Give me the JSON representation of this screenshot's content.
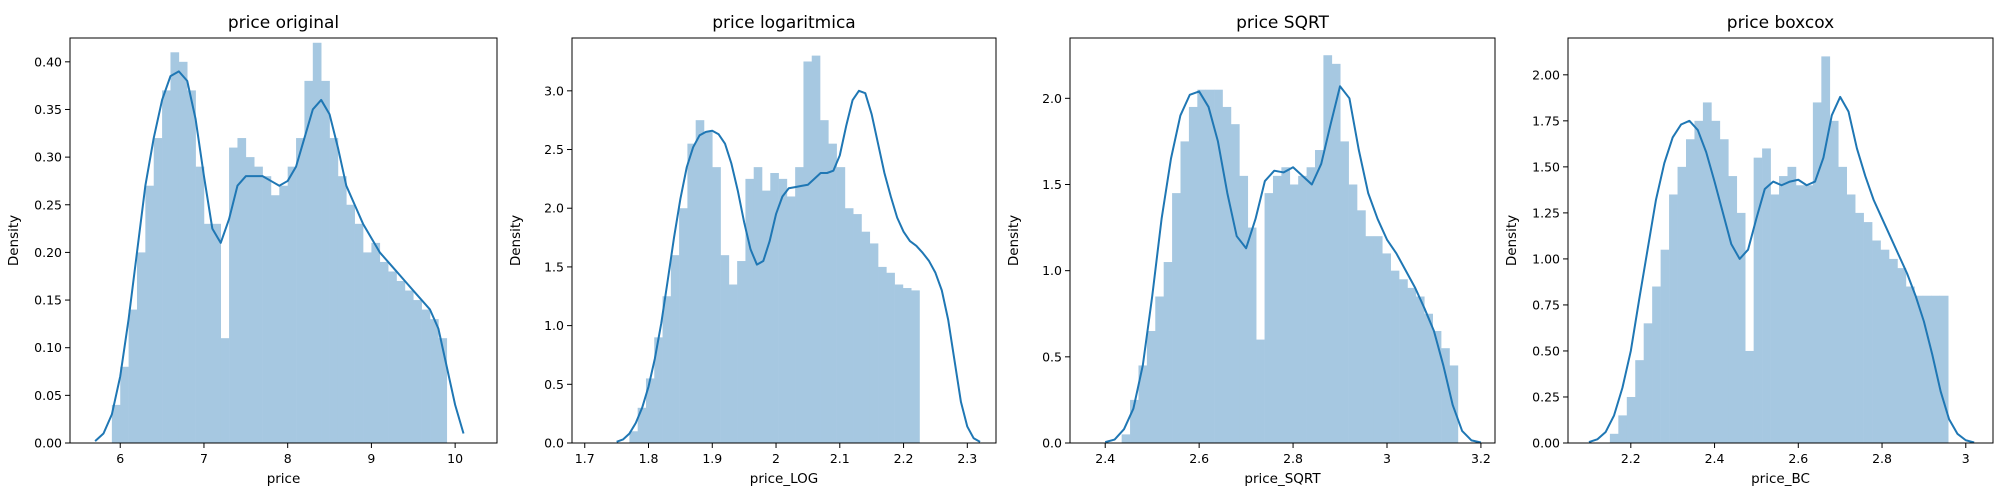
{
  "figure": {
    "background": "#ffffff",
    "bar_color": "#a6c8e1",
    "kde_color": "#1f77b4"
  },
  "chart_data": [
    {
      "type": "histogram",
      "title": "price original",
      "xlabel": "price",
      "ylabel": "Density",
      "xlim": [
        5.4,
        10.5
      ],
      "ylim": [
        0,
        0.425
      ],
      "xticks": [
        6,
        7,
        8,
        9,
        10
      ],
      "yticks": [
        0.0,
        0.05,
        0.1,
        0.15,
        0.2,
        0.25,
        0.3,
        0.35,
        0.4
      ],
      "ytick_decimals": 2,
      "bins": {
        "start": 5.9,
        "width": 0.1,
        "values": [
          0.04,
          0.08,
          0.14,
          0.2,
          0.27,
          0.32,
          0.37,
          0.41,
          0.4,
          0.37,
          0.29,
          0.23,
          0.23,
          0.11,
          0.31,
          0.32,
          0.3,
          0.29,
          0.28,
          0.26,
          0.27,
          0.29,
          0.32,
          0.38,
          0.42,
          0.38,
          0.32,
          0.28,
          0.25,
          0.23,
          0.2,
          0.21,
          0.19,
          0.18,
          0.17,
          0.16,
          0.15,
          0.14,
          0.13,
          0.11
        ]
      },
      "kde": {
        "x": [
          5.7,
          5.8,
          5.9,
          6.0,
          6.1,
          6.2,
          6.3,
          6.4,
          6.5,
          6.6,
          6.7,
          6.8,
          6.9,
          7.0,
          7.1,
          7.2,
          7.3,
          7.4,
          7.5,
          7.6,
          7.7,
          7.8,
          7.9,
          8.0,
          8.1,
          8.2,
          8.3,
          8.4,
          8.5,
          8.6,
          8.7,
          8.8,
          8.9,
          9.0,
          9.1,
          9.2,
          9.3,
          9.4,
          9.5,
          9.6,
          9.7,
          9.8,
          9.9,
          10.0,
          10.1
        ],
        "y": [
          0.002,
          0.01,
          0.03,
          0.07,
          0.13,
          0.2,
          0.27,
          0.32,
          0.36,
          0.385,
          0.39,
          0.38,
          0.34,
          0.28,
          0.225,
          0.21,
          0.235,
          0.27,
          0.28,
          0.28,
          0.28,
          0.275,
          0.27,
          0.275,
          0.29,
          0.32,
          0.35,
          0.36,
          0.345,
          0.31,
          0.27,
          0.25,
          0.23,
          0.215,
          0.2,
          0.19,
          0.18,
          0.17,
          0.16,
          0.15,
          0.14,
          0.12,
          0.08,
          0.04,
          0.01
        ]
      }
    },
    {
      "type": "histogram",
      "title": "price logaritmica",
      "xlabel": "price_LOG",
      "ylabel": "Density",
      "xlim": [
        1.68,
        2.345
      ],
      "ylim": [
        0,
        3.45
      ],
      "xticks": [
        1.7,
        1.8,
        1.9,
        2.0,
        2.1,
        2.2,
        2.3
      ],
      "yticks": [
        0.0,
        0.5,
        1.0,
        1.5,
        2.0,
        2.5,
        3.0
      ],
      "ytick_decimals": 1,
      "bins": {
        "start": 1.77,
        "width": 0.013,
        "values": [
          0.1,
          0.3,
          0.55,
          0.9,
          1.25,
          1.6,
          2.0,
          2.55,
          2.75,
          2.65,
          2.35,
          1.6,
          1.35,
          1.55,
          2.25,
          2.35,
          2.15,
          2.3,
          2.25,
          2.1,
          2.35,
          3.25,
          3.3,
          2.75,
          2.55,
          2.35,
          2.0,
          1.95,
          1.8,
          1.7,
          1.5,
          1.45,
          1.35,
          1.32,
          1.3
        ]
      },
      "kde": {
        "x": [
          1.75,
          1.76,
          1.77,
          1.78,
          1.79,
          1.8,
          1.81,
          1.82,
          1.83,
          1.84,
          1.85,
          1.86,
          1.87,
          1.88,
          1.89,
          1.9,
          1.91,
          1.92,
          1.93,
          1.94,
          1.95,
          1.96,
          1.97,
          1.98,
          1.99,
          2.0,
          2.01,
          2.02,
          2.03,
          2.04,
          2.05,
          2.06,
          2.07,
          2.08,
          2.09,
          2.1,
          2.11,
          2.12,
          2.13,
          2.14,
          2.15,
          2.16,
          2.17,
          2.18,
          2.19,
          2.2,
          2.21,
          2.22,
          2.23,
          2.24,
          2.25,
          2.26,
          2.27,
          2.28,
          2.29,
          2.3,
          2.31,
          2.32
        ],
        "y": [
          0.01,
          0.03,
          0.08,
          0.17,
          0.3,
          0.48,
          0.72,
          1.02,
          1.38,
          1.75,
          2.08,
          2.35,
          2.52,
          2.62,
          2.65,
          2.66,
          2.63,
          2.55,
          2.38,
          2.15,
          1.88,
          1.65,
          1.52,
          1.55,
          1.72,
          1.95,
          2.1,
          2.17,
          2.18,
          2.19,
          2.2,
          2.25,
          2.3,
          2.3,
          2.32,
          2.45,
          2.7,
          2.92,
          3.0,
          2.98,
          2.8,
          2.55,
          2.3,
          2.1,
          1.92,
          1.8,
          1.72,
          1.68,
          1.62,
          1.55,
          1.45,
          1.3,
          1.05,
          0.7,
          0.35,
          0.14,
          0.04,
          0.01
        ]
      }
    },
    {
      "type": "histogram",
      "title": "price SQRT",
      "xlabel": "price_SQRT",
      "ylabel": "Density",
      "xlim": [
        2.325,
        3.23
      ],
      "ylim": [
        0,
        2.35
      ],
      "xticks": [
        2.4,
        2.6,
        2.8,
        3.0,
        3.2
      ],
      "yticks": [
        0.0,
        0.5,
        1.0,
        1.5,
        2.0
      ],
      "ytick_decimals": 1,
      "bins": {
        "start": 2.435,
        "width": 0.0179,
        "values": [
          0.05,
          0.25,
          0.45,
          0.65,
          0.85,
          1.05,
          1.45,
          1.75,
          1.95,
          2.05,
          2.05,
          2.05,
          1.95,
          1.85,
          1.55,
          1.25,
          0.6,
          1.45,
          1.55,
          1.6,
          1.5,
          1.55,
          1.6,
          1.7,
          2.25,
          2.2,
          1.75,
          1.5,
          1.35,
          1.2,
          1.2,
          1.1,
          1.0,
          0.95,
          0.9,
          0.85,
          0.75,
          0.65,
          0.55,
          0.45
        ]
      },
      "kde": {
        "x": [
          2.4,
          2.42,
          2.44,
          2.46,
          2.48,
          2.5,
          2.52,
          2.54,
          2.56,
          2.58,
          2.6,
          2.62,
          2.64,
          2.66,
          2.68,
          2.7,
          2.72,
          2.74,
          2.76,
          2.78,
          2.8,
          2.82,
          2.84,
          2.86,
          2.88,
          2.9,
          2.92,
          2.94,
          2.96,
          2.98,
          3.0,
          3.02,
          3.04,
          3.06,
          3.08,
          3.1,
          3.12,
          3.14,
          3.16,
          3.18,
          3.2
        ],
        "y": [
          0.005,
          0.02,
          0.08,
          0.2,
          0.45,
          0.85,
          1.3,
          1.65,
          1.9,
          2.02,
          2.04,
          1.95,
          1.75,
          1.45,
          1.2,
          1.13,
          1.3,
          1.52,
          1.58,
          1.57,
          1.6,
          1.55,
          1.5,
          1.62,
          1.85,
          2.07,
          2.0,
          1.7,
          1.45,
          1.3,
          1.18,
          1.1,
          1.0,
          0.9,
          0.78,
          0.65,
          0.45,
          0.22,
          0.07,
          0.015,
          0.003
        ]
      }
    },
    {
      "type": "histogram",
      "title": "price boxcox",
      "xlabel": "price_BC",
      "ylabel": "Density",
      "xlim": [
        2.05,
        3.065
      ],
      "ylim": [
        0,
        2.2
      ],
      "xticks": [
        2.2,
        2.4,
        2.6,
        2.8,
        3.0
      ],
      "yticks": [
        0.0,
        0.25,
        0.5,
        0.75,
        1.0,
        1.25,
        1.5,
        1.75,
        2.0
      ],
      "ytick_decimals": 2,
      "bins": {
        "start": 2.15,
        "width": 0.0202,
        "values": [
          0.05,
          0.15,
          0.25,
          0.45,
          0.65,
          0.85,
          1.05,
          1.35,
          1.5,
          1.65,
          1.75,
          1.85,
          1.75,
          1.65,
          1.45,
          1.25,
          0.5,
          1.55,
          1.6,
          1.35,
          1.45,
          1.5,
          1.4,
          1.4,
          1.85,
          2.1,
          1.75,
          1.5,
          1.35,
          1.25,
          1.2,
          1.1,
          1.05,
          1.0,
          0.95,
          0.85,
          0.8,
          0.8,
          0.8,
          0.8
        ]
      },
      "kde": {
        "x": [
          2.1,
          2.12,
          2.14,
          2.16,
          2.18,
          2.2,
          2.22,
          2.24,
          2.26,
          2.28,
          2.3,
          2.32,
          2.34,
          2.36,
          2.38,
          2.4,
          2.42,
          2.44,
          2.46,
          2.48,
          2.5,
          2.52,
          2.54,
          2.56,
          2.58,
          2.6,
          2.62,
          2.64,
          2.66,
          2.68,
          2.7,
          2.72,
          2.74,
          2.76,
          2.78,
          2.8,
          2.82,
          2.84,
          2.86,
          2.88,
          2.9,
          2.92,
          2.94,
          2.96,
          2.98,
          3.0,
          3.02
        ],
        "y": [
          0.005,
          0.02,
          0.06,
          0.15,
          0.3,
          0.5,
          0.78,
          1.05,
          1.32,
          1.52,
          1.66,
          1.73,
          1.75,
          1.7,
          1.58,
          1.42,
          1.25,
          1.08,
          1.0,
          1.05,
          1.22,
          1.38,
          1.42,
          1.4,
          1.42,
          1.43,
          1.4,
          1.42,
          1.55,
          1.78,
          1.88,
          1.8,
          1.6,
          1.45,
          1.32,
          1.22,
          1.12,
          1.02,
          0.92,
          0.8,
          0.66,
          0.48,
          0.28,
          0.13,
          0.05,
          0.015,
          0.003
        ]
      }
    }
  ]
}
